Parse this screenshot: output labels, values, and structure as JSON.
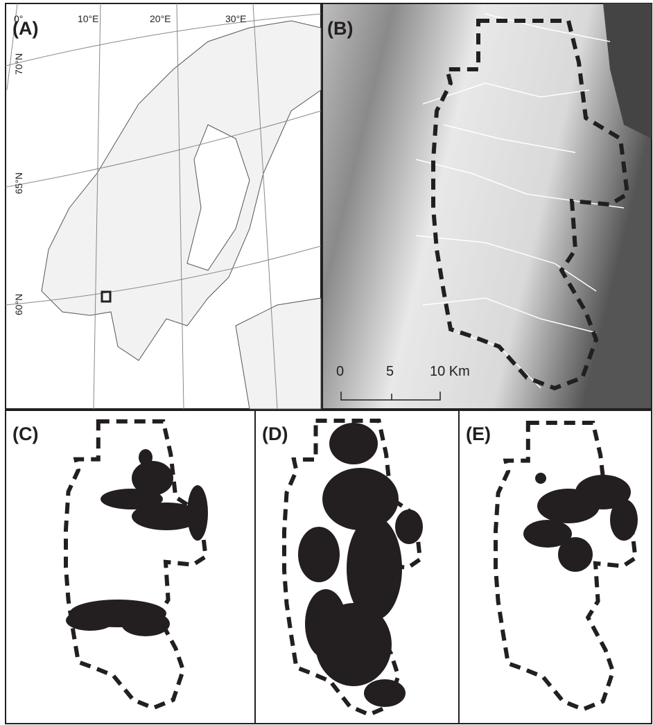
{
  "panels": [
    {
      "label": "(A)"
    },
    {
      "label": "(B)"
    },
    {
      "label": "(C)"
    },
    {
      "label": "(D)"
    },
    {
      "label": "(E)"
    }
  ],
  "map_a": {
    "lon_labels": [
      "0°",
      "10°E",
      "20°E",
      "30°E"
    ],
    "lat_labels": [
      "70°N",
      "65°N",
      "60°N"
    ]
  },
  "scale_bar": {
    "labels": [
      "0",
      "5",
      "10 Km"
    ]
  }
}
